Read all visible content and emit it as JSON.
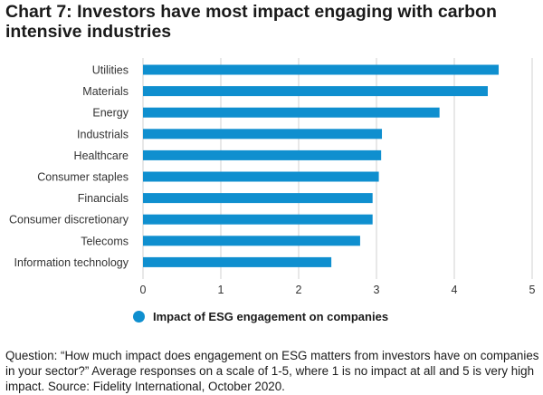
{
  "title": "Chart 7: Investors have most impact engaging with carbon intensive industries",
  "note": "Question: “How much impact does engagement on ESG matters from investors have on companies in your sector?” Average responses on a scale of 1-5, where 1 is no impact at all and 5 is very high impact. Source: Fidelity International, October 2020.",
  "colors": {
    "bar": "#0f8fcf",
    "grid": "#d0d0d0"
  },
  "chart_data": {
    "type": "bar",
    "orientation": "horizontal",
    "categories": [
      "Utilities",
      "Materials",
      "Energy",
      "Industrials",
      "Healthcare",
      "Consumer staples",
      "Financials",
      "Consumer discretionary",
      "Telecoms",
      "Information technology"
    ],
    "series": [
      {
        "name": "Impact of ESG engagement on companies",
        "values": [
          4.57,
          4.43,
          3.81,
          3.07,
          3.06,
          3.03,
          2.95,
          2.95,
          2.79,
          2.42
        ]
      }
    ],
    "xlim": [
      0,
      5
    ],
    "xticks": [
      "0",
      "1",
      "2",
      "3",
      "4",
      "5"
    ],
    "grid": "vertical",
    "legend": "bottom"
  }
}
